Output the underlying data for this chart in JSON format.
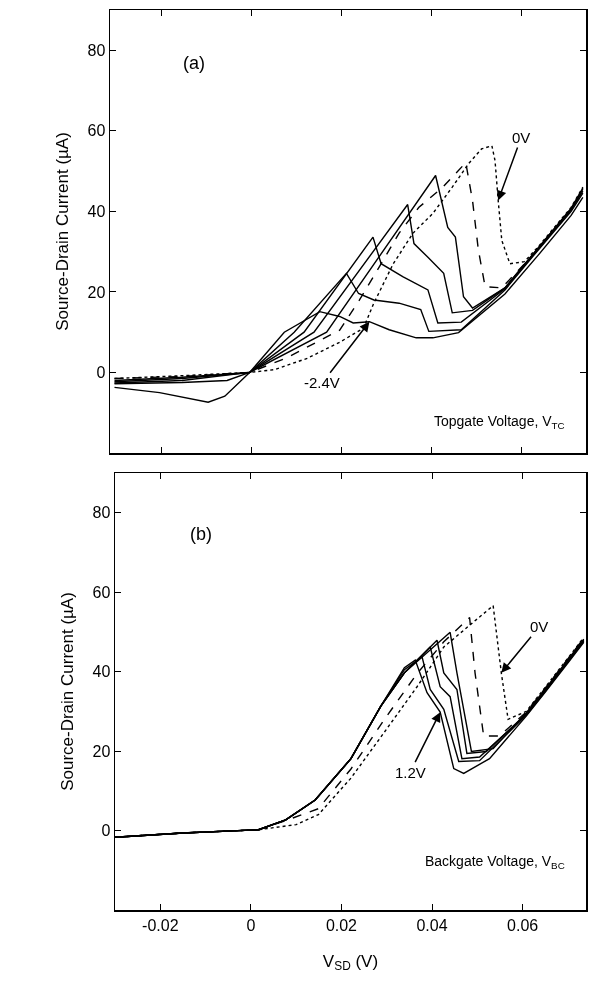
{
  "chart_data": [
    {
      "type": "line",
      "ylabel": "Source-Drain Current (µA)",
      "xlim": [
        -0.0314,
        0.0743
      ],
      "ylim": [
        -20,
        90
      ],
      "xticks": [
        -0.02,
        0,
        0.02,
        0.04,
        0.06
      ],
      "yticks": [
        0,
        20,
        40,
        60,
        80
      ],
      "tick_labels": "y",
      "color": "#000000",
      "annotations": [
        "(a)",
        {
          "text": "0V",
          "x": 0.0548,
          "y": 42.7
        },
        {
          "text": "-2.4V",
          "x": 0.0262,
          "y": 12.6
        },
        "Topgate Voltage, V$_{TC}$"
      ],
      "series": [
        {
          "line_style": "dotted",
          "x": [
            -0.0304,
            -0.0154,
            -0.0004,
            0.0051,
            0.0124,
            0.0196,
            0.0249,
            0.0271,
            0.0315,
            0.0359,
            0.0403,
            0.0446,
            0.0482,
            0.0511,
            0.0534,
            0.0541,
            0.0548,
            0.0556,
            0.0574,
            0.0606,
            0.0636,
            0.071,
            0.0736
          ],
          "values": [
            -1.5,
            -0.8,
            0,
            0.7,
            3.5,
            7.5,
            11,
            17,
            27,
            34.6,
            39.5,
            46,
            51.8,
            55.5,
            56.3,
            52.6,
            42.7,
            32.8,
            27,
            27.5,
            31.1,
            41,
            46
          ]
        },
        {
          "line_style": "dashed",
          "x": [
            -0.0304,
            -0.0154,
            -0.0004,
            0.0076,
            0.0196,
            0.024,
            0.0284,
            0.0328,
            0.0372,
            0.0425,
            0.0476,
            0.0491,
            0.0504,
            0.0519,
            0.0556,
            0.0636,
            0.071,
            0.0736
          ],
          "values": [
            -1.5,
            -1,
            0,
            3.5,
            10.5,
            18,
            26.2,
            34.6,
            41,
            46,
            52.1,
            42.7,
            30.4,
            21.3,
            21,
            30.5,
            40.5,
            45.5
          ]
        },
        {
          "line_style": "solid",
          "x": [
            -0.0304,
            -0.0154,
            -0.0004,
            0.0167,
            0.0409,
            0.0436,
            0.0453,
            0.0471,
            0.0491,
            0.0563,
            0.0636,
            0.071,
            0.0736
          ],
          "values": [
            -2,
            -1.2,
            0,
            10,
            48.9,
            36,
            33.6,
            18.8,
            16,
            21,
            30.8,
            40.8,
            45.8
          ]
        },
        {
          "line_style": "solid",
          "x": [
            -0.0304,
            -0.0154,
            -0.0004,
            0.0139,
            0.0347,
            0.0361,
            0.0392,
            0.0427,
            0.0446,
            0.0491,
            0.0563,
            0.0636,
            0.071,
            0.0736
          ],
          "values": [
            -2.3,
            -1.5,
            0,
            10,
            41.7,
            32,
            28.6,
            24.6,
            14.8,
            15.4,
            21,
            30.8,
            40.6,
            45.5
          ]
        },
        {
          "line_style": "solid",
          "x": [
            -0.0304,
            -0.0154,
            -0.0004,
            0.0117,
            0.027,
            0.0288,
            0.0336,
            0.0392,
            0.0414,
            0.0466,
            0.0563,
            0.0636,
            0.071,
            0.0736
          ],
          "values": [
            -2.6,
            -2,
            0,
            10,
            33.6,
            27,
            23.8,
            20.5,
            12.3,
            12.5,
            20.8,
            30.5,
            40.3,
            45
          ]
        },
        {
          "line_style": "solid",
          "x": [
            -0.0304,
            -0.0154,
            -0.0054,
            -0.0004,
            0.0095,
            0.0211,
            0.0238,
            0.0272,
            0.0328,
            0.0376,
            0.0394,
            0.0466,
            0.0563,
            0.0636,
            0.071,
            0.0736
          ],
          "values": [
            -2.8,
            -2.5,
            -2,
            0,
            10,
            24.6,
            19.6,
            18,
            17.2,
            15.6,
            10.2,
            10.6,
            20.5,
            30.3,
            40,
            44.5
          ]
        },
        {
          "line_style": "solid",
          "x": [
            -0.0304,
            -0.0204,
            -0.0096,
            -0.0059,
            -0.0004,
            0.0073,
            0.0152,
            0.0196,
            0.0226,
            0.0262,
            0.0306,
            0.0366,
            0.0403,
            0.046,
            0.0563,
            0.0636,
            0.071,
            0.0736
          ],
          "values": [
            -3.7,
            -5,
            -7.4,
            -5.9,
            0,
            10,
            15.1,
            13.9,
            12.3,
            12.6,
            10.6,
            8.6,
            8.6,
            9.9,
            19.5,
            29,
            39,
            43.5
          ]
        }
      ]
    },
    {
      "type": "line",
      "xlabel": "V$_{SD}$ (V)",
      "ylabel": "Source-Drain Current (µA)",
      "xlim": [
        -0.03,
        0.074
      ],
      "ylim": [
        -20,
        90
      ],
      "xticks": [
        -0.02,
        0,
        0.02,
        0.04,
        0.06
      ],
      "yticks": [
        0,
        20,
        40,
        60,
        80
      ],
      "color": "#000000",
      "annotations": [
        "(b)",
        {
          "text": "0V",
          "x": 0.0553,
          "y": 39.7
        },
        {
          "text": "1.2V",
          "x": 0.0418,
          "y": 29.8
        },
        "Backgate Voltage, V$_{BC}$"
      ],
      "series": [
        {
          "line_style": "dotted",
          "x": [
            -0.03,
            -0.015,
            0.0017,
            0.01,
            0.0149,
            0.0221,
            0.0295,
            0.0367,
            0.0426,
            0.0477,
            0.0535,
            0.0553,
            0.0568,
            0.0608,
            0.0651,
            0.0702,
            0.0735
          ],
          "values": [
            -1.7,
            -0.6,
            0.2,
            1.5,
            4,
            13.2,
            24.8,
            36.2,
            46.2,
            51.1,
            56.6,
            39.7,
            28,
            30,
            36.2,
            43.7,
            48.6
          ]
        },
        {
          "line_style": "dashed",
          "x": [
            -0.03,
            -0.015,
            0.0017,
            0.0077,
            0.0149,
            0.0221,
            0.0295,
            0.0367,
            0.0426,
            0.0483,
            0.0495,
            0.0514,
            0.0549,
            0.0608,
            0.0651,
            0.0702,
            0.0735
          ],
          "values": [
            -1.7,
            -0.6,
            0.2,
            2.5,
            5.5,
            15.5,
            28,
            39.5,
            47.5,
            53.6,
            39.7,
            23.8,
            23.8,
            29.8,
            36,
            43.5,
            48.4
          ]
        },
        {
          "line_style": "solid",
          "x": [
            -0.03,
            -0.015,
            0.0017,
            0.0077,
            0.0142,
            0.0221,
            0.0287,
            0.0339,
            0.044,
            0.0455,
            0.0487,
            0.0535,
            0.0608,
            0.0651,
            0.0702,
            0.0735
          ],
          "values": [
            -1.7,
            -0.6,
            0.2,
            2.7,
            7.7,
            18.1,
            31.3,
            39.7,
            49.9,
            39.7,
            19.9,
            20.6,
            29.6,
            35.8,
            43.3,
            48.2
          ]
        },
        {
          "line_style": "solid",
          "x": [
            -0.03,
            -0.015,
            0.0017,
            0.0077,
            0.0142,
            0.0221,
            0.0287,
            0.0339,
            0.0411,
            0.0426,
            0.0455,
            0.0477,
            0.052,
            0.0608,
            0.0651,
            0.0702,
            0.0735
          ],
          "values": [
            -1.7,
            -0.6,
            0.2,
            2.7,
            7.7,
            18.1,
            31.3,
            39.7,
            47.9,
            39.7,
            35.5,
            19.4,
            19.9,
            29.4,
            35.6,
            43.1,
            48
          ]
        },
        {
          "line_style": "solid",
          "x": [
            -0.03,
            -0.015,
            0.0017,
            0.0077,
            0.0142,
            0.0221,
            0.0287,
            0.0339,
            0.0396,
            0.0418,
            0.044,
            0.0466,
            0.0505,
            0.0608,
            0.0651,
            0.0702,
            0.0735
          ],
          "values": [
            -1.7,
            -0.6,
            0.2,
            2.7,
            7.7,
            18.1,
            31.3,
            39.7,
            46.2,
            36.2,
            33.7,
            18.1,
            18.5,
            29.2,
            35.4,
            42.9,
            47.8
          ]
        },
        {
          "line_style": "solid",
          "x": [
            -0.03,
            -0.015,
            0.0017,
            0.0077,
            0.0142,
            0.0221,
            0.0287,
            0.0339,
            0.0378,
            0.0396,
            0.0426,
            0.0459,
            0.0505,
            0.0608,
            0.0651,
            0.0702,
            0.0735
          ],
          "values": [
            -1.7,
            -0.6,
            0.2,
            2.7,
            7.7,
            18.1,
            31.3,
            40.5,
            43.7,
            35.5,
            30.5,
            17.4,
            17.6,
            29,
            35.2,
            42.7,
            47.6
          ]
        },
        {
          "line_style": "solid",
          "x": [
            -0.03,
            -0.015,
            0.0017,
            0.0077,
            0.0142,
            0.0221,
            0.0287,
            0.0339,
            0.0363,
            0.0389,
            0.0418,
            0.0448,
            0.047,
            0.0527,
            0.0608,
            0.0651,
            0.0702,
            0.0735
          ],
          "values": [
            -1.7,
            -0.6,
            0.2,
            2.7,
            7.7,
            18.1,
            31.3,
            41,
            42.9,
            34.7,
            29.8,
            15.6,
            14.4,
            18.1,
            28.8,
            35,
            42.5,
            47.4
          ]
        }
      ]
    }
  ]
}
